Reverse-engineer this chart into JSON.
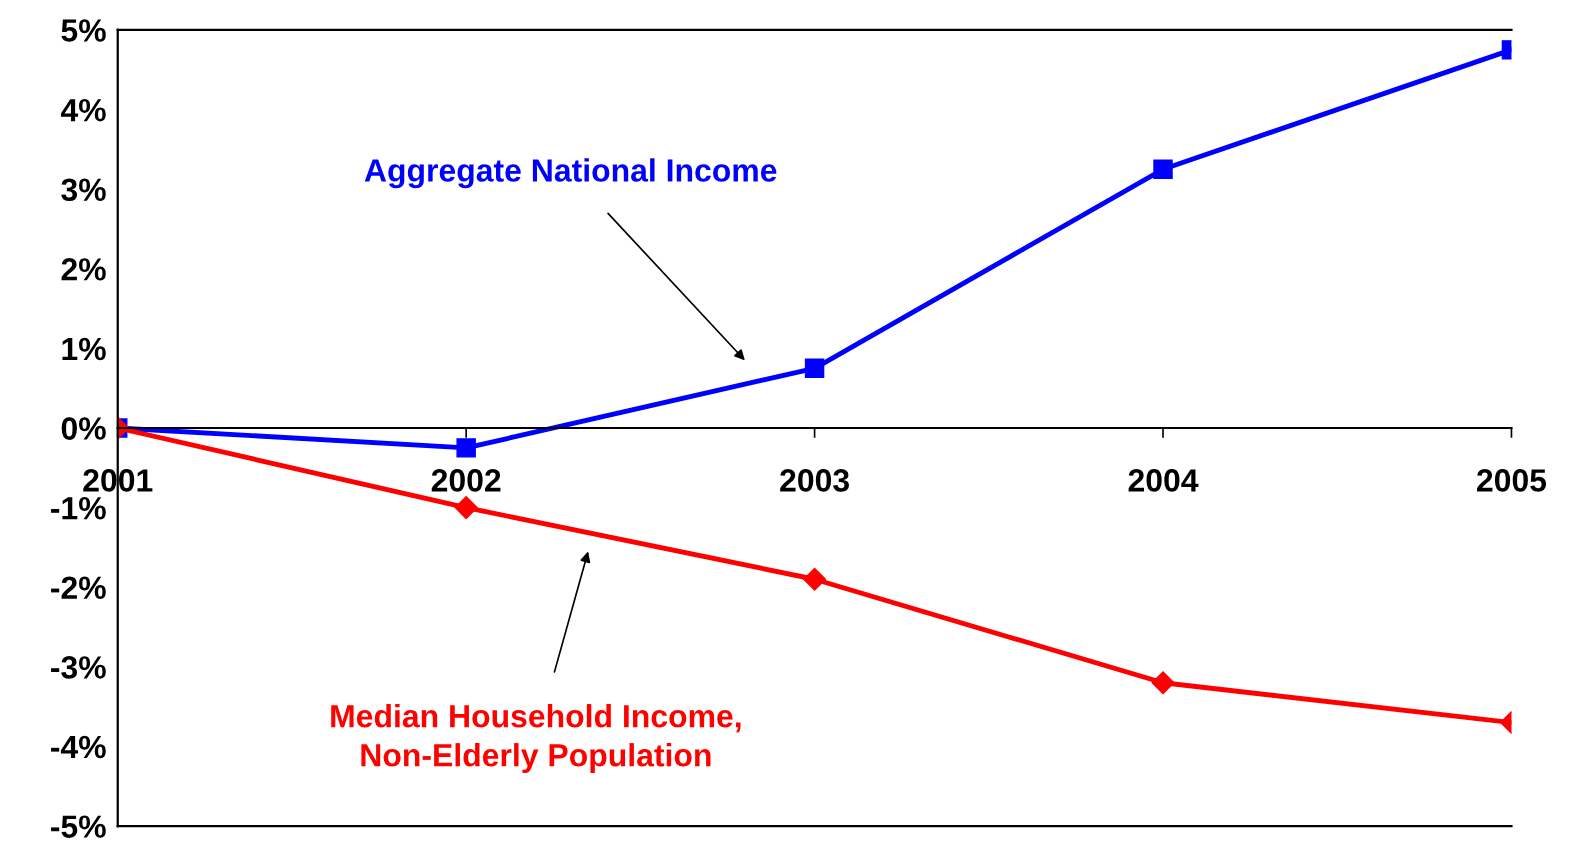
{
  "chart_data": {
    "type": "line",
    "categories": [
      "2001",
      "2002",
      "2003",
      "2004",
      "2005"
    ],
    "series": [
      {
        "name": "Aggregate National Income",
        "color": "#0000ff",
        "marker": "square",
        "values": [
          0,
          -0.25,
          0.75,
          3.25,
          4.75
        ]
      },
      {
        "name": "Median Household Income,\nNon-Elderly Population",
        "color": "#ff0000",
        "marker": "diamond",
        "values": [
          0,
          -1.0,
          -1.9,
          -3.2,
          -3.7
        ]
      }
    ],
    "ylim": [
      -5,
      5
    ],
    "yticks": [
      {
        "value": 5,
        "label": "5%"
      },
      {
        "value": 4,
        "label": "4%"
      },
      {
        "value": 3,
        "label": "3%"
      },
      {
        "value": 2,
        "label": "2%"
      },
      {
        "value": 1,
        "label": "1%"
      },
      {
        "value": 0,
        "label": "0%"
      },
      {
        "value": -1,
        "label": "-1%"
      },
      {
        "value": -2,
        "label": "-2%"
      },
      {
        "value": -3,
        "label": "-3%"
      },
      {
        "value": -4,
        "label": "-4%"
      },
      {
        "value": -5,
        "label": "-5%"
      }
    ],
    "grid": false,
    "legend": false,
    "line_style": "solid"
  }
}
